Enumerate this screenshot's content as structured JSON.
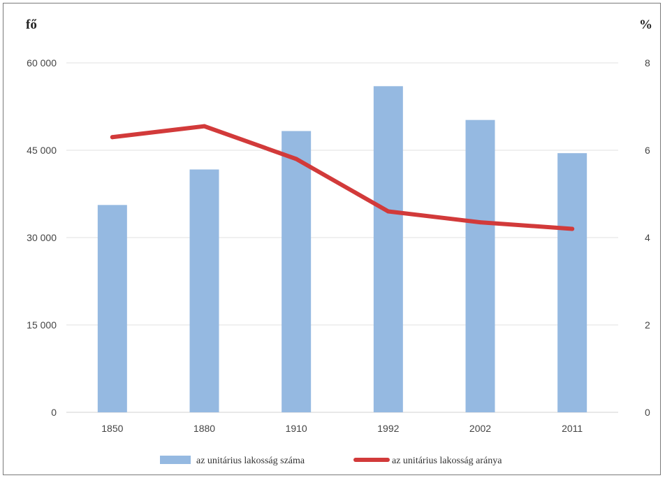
{
  "chart_data": {
    "type": "bar",
    "categories": [
      "1850",
      "1880",
      "1910",
      "1992",
      "2002",
      "2011"
    ],
    "series": [
      {
        "name": "az unitárius lakosság száma",
        "kind": "bar",
        "axis": "left",
        "color": "#95b9e1",
        "values": [
          35600,
          41700,
          48300,
          56000,
          50200,
          44500
        ]
      },
      {
        "name": "az unitárius lakosság aránya",
        "kind": "line",
        "axis": "right",
        "color": "#d23a3a",
        "values": [
          6.3,
          6.55,
          5.8,
          4.6,
          4.35,
          4.2
        ]
      }
    ],
    "y_left": {
      "label": "fő",
      "ylim": [
        0,
        60000
      ],
      "ticks": [
        "0",
        "15 000",
        "30 000",
        "45 000",
        "60 000"
      ]
    },
    "y_right": {
      "label": "%",
      "ylim": [
        0,
        8
      ],
      "ticks": [
        "0",
        "2",
        "4",
        "6",
        "8"
      ]
    },
    "grid": true,
    "legend_position": "bottom"
  }
}
